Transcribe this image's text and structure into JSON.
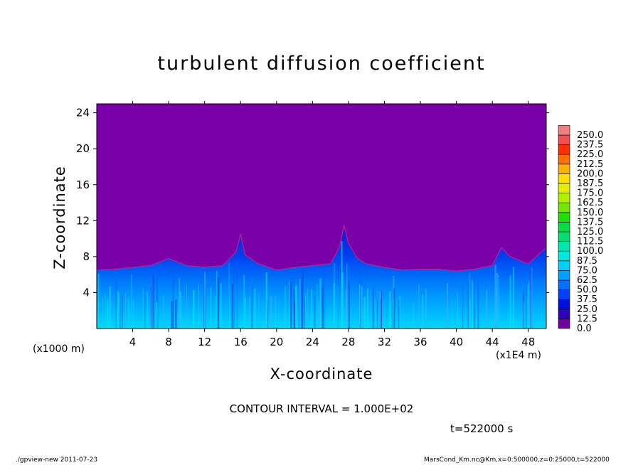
{
  "chart_data": {
    "type": "heatmap",
    "title": "turbulent diffusion coefficient",
    "xlabel": "X-coordinate",
    "ylabel": "Z-coordinate",
    "x_unit_left": "(x1000 m)",
    "x_unit_right": "(x1E4 m)",
    "xlim": [
      0,
      50
    ],
    "ylim": [
      0,
      25
    ],
    "x_ticks": [
      "4",
      "8",
      "12",
      "16",
      "20",
      "24",
      "28",
      "32",
      "36",
      "40",
      "44",
      "48"
    ],
    "y_ticks": [
      "4",
      "8",
      "12",
      "16",
      "20",
      "24"
    ],
    "colorbar": {
      "labels": [
        "0.0",
        "12.5",
        "25.0",
        "37.5",
        "50.0",
        "62.5",
        "75.0",
        "87.5",
        "100.0",
        "112.5",
        "125.0",
        "137.5",
        "150.0",
        "162.5",
        "175.0",
        "187.5",
        "200.0",
        "212.5",
        "225.0",
        "237.5",
        "250.0"
      ],
      "colors": [
        "#7000a0",
        "#3000c0",
        "#0010e0",
        "#0040ff",
        "#0070ff",
        "#00a0ff",
        "#00d0ff",
        "#00e8e0",
        "#00e8b0",
        "#00e070",
        "#00e040",
        "#20e000",
        "#70e800",
        "#b0f000",
        "#e0f000",
        "#ffe000",
        "#ffb000",
        "#ff7000",
        "#ff3000",
        "#f05050",
        "#f08080"
      ]
    },
    "background_value": 0.0,
    "background_color": "#7a00a8",
    "mixed_layer_top": [
      [
        0,
        6.5
      ],
      [
        2,
        6.6
      ],
      [
        4,
        6.8
      ],
      [
        6,
        7.0
      ],
      [
        8,
        7.8
      ],
      [
        10,
        7.0
      ],
      [
        12,
        6.8
      ],
      [
        14,
        7.0
      ],
      [
        15.5,
        8.5
      ],
      [
        16,
        10.5
      ],
      [
        16.5,
        8.2
      ],
      [
        18,
        7.2
      ],
      [
        20,
        6.5
      ],
      [
        22,
        6.8
      ],
      [
        24,
        7.0
      ],
      [
        26,
        7.2
      ],
      [
        27,
        9.0
      ],
      [
        27.5,
        11.5
      ],
      [
        28,
        9.5
      ],
      [
        29,
        7.8
      ],
      [
        30,
        7.2
      ],
      [
        32,
        6.8
      ],
      [
        34,
        6.5
      ],
      [
        36,
        6.6
      ],
      [
        38,
        6.6
      ],
      [
        40,
        6.4
      ],
      [
        42,
        6.6
      ],
      [
        44,
        7.0
      ],
      [
        45,
        9.0
      ],
      [
        46,
        8.0
      ],
      [
        48,
        7.2
      ],
      [
        50,
        9.0
      ]
    ],
    "annotations": [
      "CONTOUR INTERVAL = 1.000E+02",
      "t=522000 s"
    ]
  },
  "footer": {
    "left": "./gpview-new   2011-07-23",
    "right": "MarsCond_Km.nc@Km,x=0:500000,z=0:25000,t=522000"
  }
}
